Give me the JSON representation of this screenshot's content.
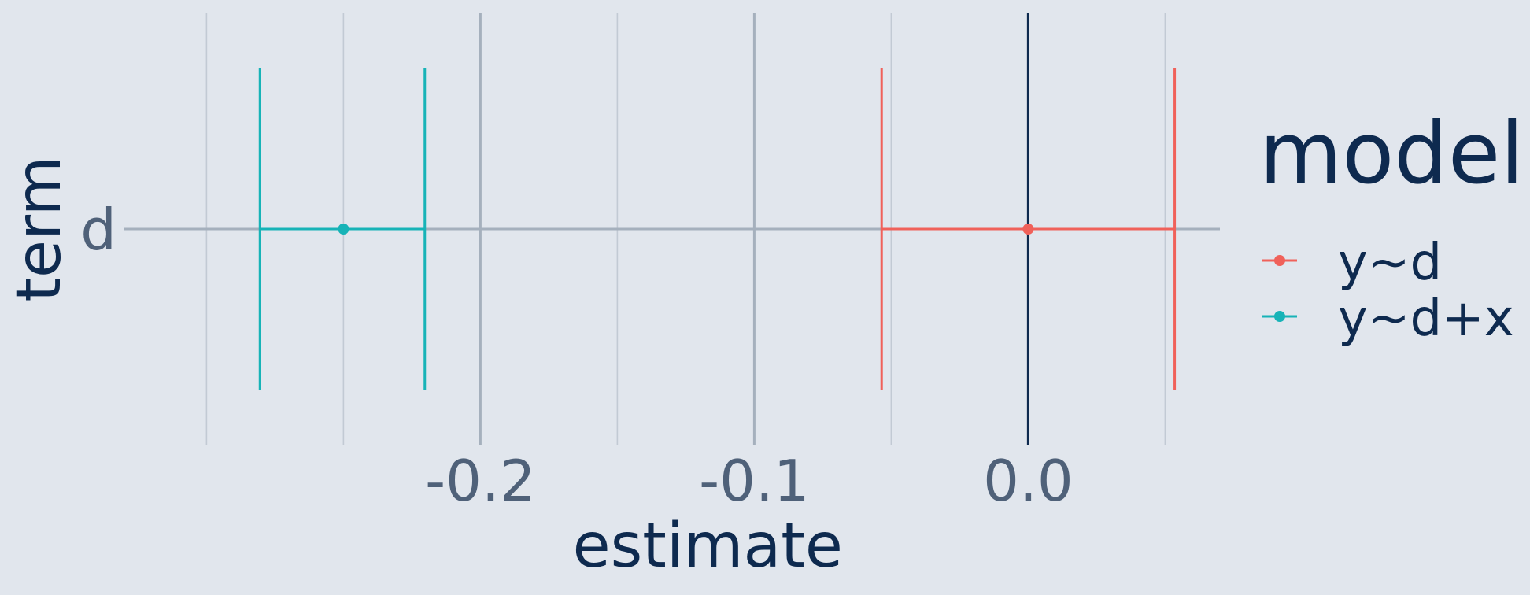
{
  "chart_data": {
    "type": "dot-and-whisker",
    "xlabel": "estimate",
    "ylabel": "term",
    "xlim": [
      -0.33,
      0.07
    ],
    "x_ticks": [
      -0.2,
      -0.1,
      0.0
    ],
    "x_tick_labels": [
      "-0.2",
      "-0.1",
      "0.0"
    ],
    "categories": [
      "d"
    ],
    "reference_line": 0.0,
    "legend_title": "model",
    "legend_position": "right",
    "grid": true,
    "series": [
      {
        "name": "y~d",
        "color": "#f0615a",
        "estimate": 0.0,
        "ci_low": -0.0535,
        "ci_high": 0.0535
      },
      {
        "name": "y~d+x",
        "color": "#17b3b7",
        "estimate": -0.25,
        "ci_low": -0.2805,
        "ci_high": -0.2203
      }
    ]
  }
}
